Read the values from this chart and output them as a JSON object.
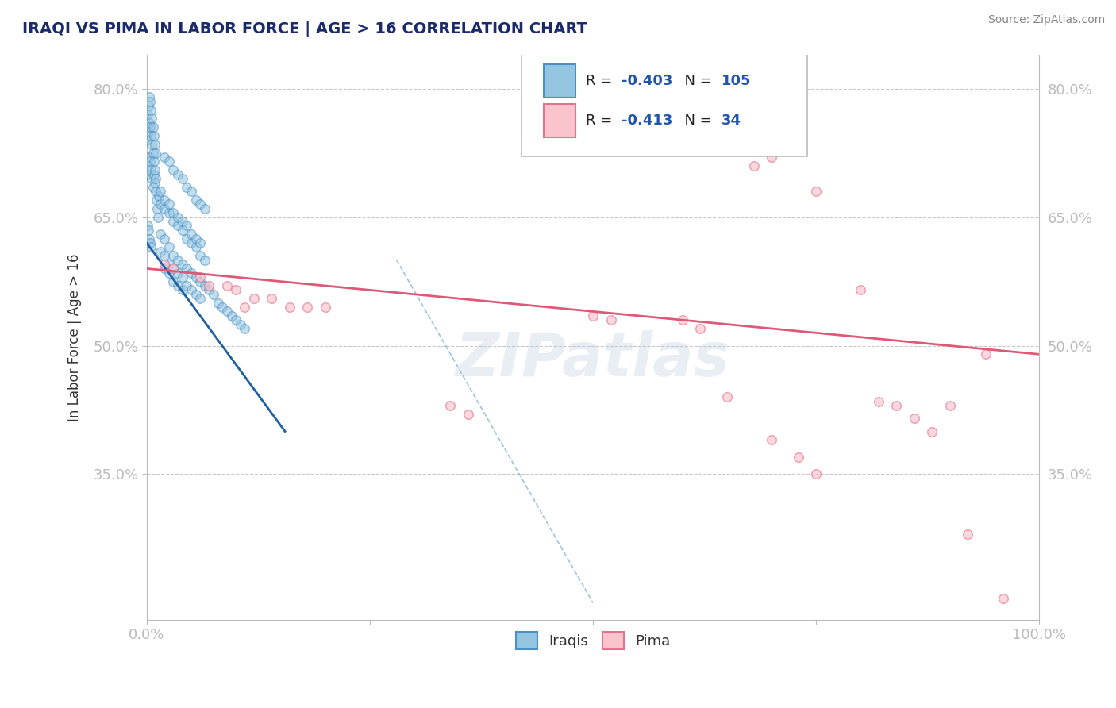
{
  "title": "IRAQI VS PIMA IN LABOR FORCE | AGE > 16 CORRELATION CHART",
  "source_text": "Source: ZipAtlas.com",
  "ylabel": "In Labor Force | Age > 16",
  "legend_labels": [
    "Iraqis",
    "Pima"
  ],
  "r_values": [
    -0.403,
    -0.413
  ],
  "n_values": [
    105,
    34
  ],
  "blue_color": "#93c4e0",
  "blue_edge_color": "#4a90c4",
  "blue_line_color": "#2060a0",
  "pink_color": "#f9c4cc",
  "pink_edge_color": "#e87090",
  "pink_line_color": "#e05878",
  "blue_scatter_alpha": 0.55,
  "pink_scatter_alpha": 0.65,
  "marker_size": 70,
  "title_color": "#1a2a6a",
  "axis_label_color": "#333333",
  "tick_label_color": "#2255aa",
  "grid_color": "#c8c8c8",
  "background_color": "#ffffff",
  "watermark_text": "ZIPatlas",
  "watermark_color": "#b8c8e0",
  "xlim": [
    0.0,
    1.0
  ],
  "ylim": [
    0.18,
    0.84
  ],
  "x_ticks": [
    0.0,
    0.25,
    0.5,
    0.75,
    1.0
  ],
  "x_tick_labels": [
    "0.0%",
    "",
    "",
    "",
    "100.0%"
  ],
  "y_ticks": [
    0.35,
    0.5,
    0.65,
    0.8
  ],
  "y_tick_labels": [
    "35.0%",
    "50.0%",
    "65.0%",
    "80.0%"
  ],
  "iraqis_x": [
    0.001,
    0.002,
    0.003,
    0.004,
    0.005,
    0.006,
    0.007,
    0.008,
    0.009,
    0.01,
    0.011,
    0.012,
    0.013,
    0.014,
    0.015,
    0.001,
    0.002,
    0.003,
    0.004,
    0.005,
    0.006,
    0.007,
    0.008,
    0.009,
    0.01,
    0.001,
    0.002,
    0.003,
    0.004,
    0.005,
    0.006,
    0.007,
    0.008,
    0.009,
    0.01,
    0.001,
    0.002,
    0.003,
    0.004,
    0.005,
    0.015,
    0.02,
    0.025,
    0.03,
    0.035,
    0.04,
    0.045,
    0.05,
    0.055,
    0.06,
    0.065,
    0.07,
    0.075,
    0.08,
    0.085,
    0.09,
    0.095,
    0.1,
    0.105,
    0.11,
    0.02,
    0.025,
    0.03,
    0.035,
    0.04,
    0.045,
    0.05,
    0.055,
    0.06,
    0.065,
    0.015,
    0.02,
    0.025,
    0.03,
    0.035,
    0.04,
    0.045,
    0.05,
    0.055,
    0.06,
    0.02,
    0.025,
    0.03,
    0.035,
    0.04,
    0.045,
    0.05,
    0.055,
    0.06,
    0.065,
    0.02,
    0.025,
    0.03,
    0.035,
    0.04,
    0.015,
    0.02,
    0.025,
    0.03,
    0.035,
    0.04,
    0.045,
    0.05,
    0.055,
    0.06
  ],
  "iraqis_y": [
    0.7,
    0.71,
    0.72,
    0.715,
    0.705,
    0.695,
    0.685,
    0.7,
    0.69,
    0.68,
    0.67,
    0.66,
    0.65,
    0.675,
    0.665,
    0.74,
    0.75,
    0.76,
    0.755,
    0.745,
    0.735,
    0.725,
    0.715,
    0.705,
    0.695,
    0.77,
    0.78,
    0.79,
    0.785,
    0.775,
    0.765,
    0.755,
    0.745,
    0.735,
    0.725,
    0.64,
    0.635,
    0.625,
    0.62,
    0.615,
    0.63,
    0.625,
    0.615,
    0.605,
    0.6,
    0.595,
    0.59,
    0.585,
    0.58,
    0.575,
    0.57,
    0.565,
    0.56,
    0.55,
    0.545,
    0.54,
    0.535,
    0.53,
    0.525,
    0.52,
    0.66,
    0.655,
    0.645,
    0.64,
    0.635,
    0.625,
    0.62,
    0.615,
    0.605,
    0.6,
    0.68,
    0.67,
    0.665,
    0.655,
    0.65,
    0.645,
    0.64,
    0.63,
    0.625,
    0.62,
    0.72,
    0.715,
    0.705,
    0.7,
    0.695,
    0.685,
    0.68,
    0.67,
    0.665,
    0.66,
    0.59,
    0.585,
    0.575,
    0.57,
    0.565,
    0.61,
    0.605,
    0.595,
    0.59,
    0.585,
    0.58,
    0.57,
    0.565,
    0.56,
    0.555
  ],
  "pima_x": [
    0.02,
    0.03,
    0.06,
    0.07,
    0.09,
    0.1,
    0.11,
    0.12,
    0.14,
    0.16,
    0.18,
    0.2,
    0.34,
    0.36,
    0.5,
    0.52,
    0.6,
    0.62,
    0.68,
    0.7,
    0.75,
    0.8,
    0.82,
    0.84,
    0.86,
    0.88,
    0.9,
    0.92,
    0.94,
    0.96,
    0.65,
    0.7,
    0.73,
    0.75
  ],
  "pima_y": [
    0.595,
    0.59,
    0.58,
    0.57,
    0.57,
    0.565,
    0.545,
    0.555,
    0.555,
    0.545,
    0.545,
    0.545,
    0.43,
    0.42,
    0.535,
    0.53,
    0.53,
    0.52,
    0.71,
    0.72,
    0.68,
    0.565,
    0.435,
    0.43,
    0.415,
    0.4,
    0.43,
    0.28,
    0.49,
    0.205,
    0.44,
    0.39,
    0.37,
    0.35
  ],
  "blue_trendline_x": [
    0.0,
    0.155
  ],
  "blue_trendline_y": [
    0.62,
    0.4
  ],
  "pink_trendline_x": [
    0.0,
    1.0
  ],
  "pink_trendline_y": [
    0.59,
    0.49
  ],
  "diag_line_x": [
    0.28,
    0.5
  ],
  "diag_line_y": [
    0.6,
    0.2
  ]
}
